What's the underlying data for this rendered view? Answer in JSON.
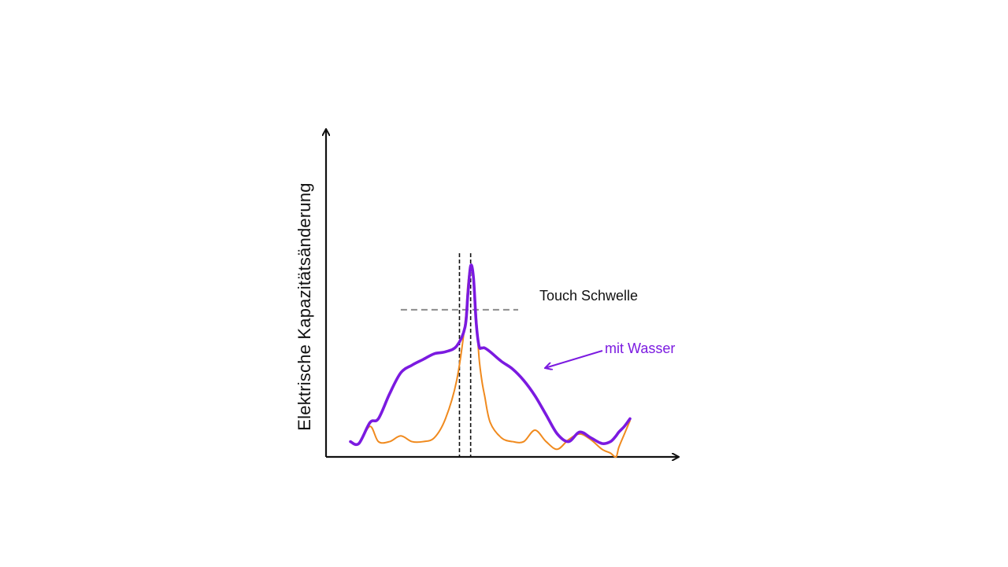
{
  "chart_data": {
    "type": "line",
    "title": "",
    "xlabel": "",
    "ylabel": "Elektrische Kapazitätsänderung",
    "xlim": [
      0,
      100
    ],
    "ylim": [
      0,
      100
    ],
    "grid": false,
    "ticks": false,
    "x": [
      0,
      3,
      7,
      10,
      14,
      18,
      22,
      26,
      30,
      34,
      38,
      41,
      42,
      43,
      44,
      45,
      46,
      47,
      48,
      50,
      54,
      58,
      62,
      66,
      70,
      74,
      78,
      82,
      86,
      90,
      93,
      95,
      96,
      98,
      100
    ],
    "series": [
      {
        "name": "mit Wasser",
        "color": "#7b1ae0",
        "values": [
          8,
          7,
          18,
          20,
          33,
          44,
          48,
          51,
          54,
          55,
          58,
          68,
          85,
          100,
          94,
          70,
          58,
          57,
          57,
          55,
          50,
          46,
          40,
          32,
          22,
          12,
          8,
          13,
          10,
          7,
          8,
          11,
          13,
          16,
          20
        ]
      },
      {
        "name": "",
        "color": "#f08a1e",
        "values": [
          8,
          7,
          16,
          8,
          8,
          11,
          8,
          8,
          10,
          20,
          40,
          70,
          90,
          100,
          92,
          74,
          52,
          40,
          32,
          18,
          10,
          8,
          8,
          14,
          8,
          4,
          9,
          12,
          9,
          4,
          2,
          0,
          5,
          12,
          19
        ]
      }
    ],
    "threshold": {
      "label": "Touch Schwelle",
      "value": 77,
      "x_range": [
        18,
        60
      ],
      "color": "#8c8c8c"
    },
    "markers": {
      "x": [
        39,
        43
      ],
      "color": "#111111"
    },
    "annotations": [
      {
        "text": "mit Wasser",
        "color": "#7b1ae0"
      }
    ]
  },
  "colors": {
    "axis": "#111111",
    "background": "#ffffff"
  }
}
